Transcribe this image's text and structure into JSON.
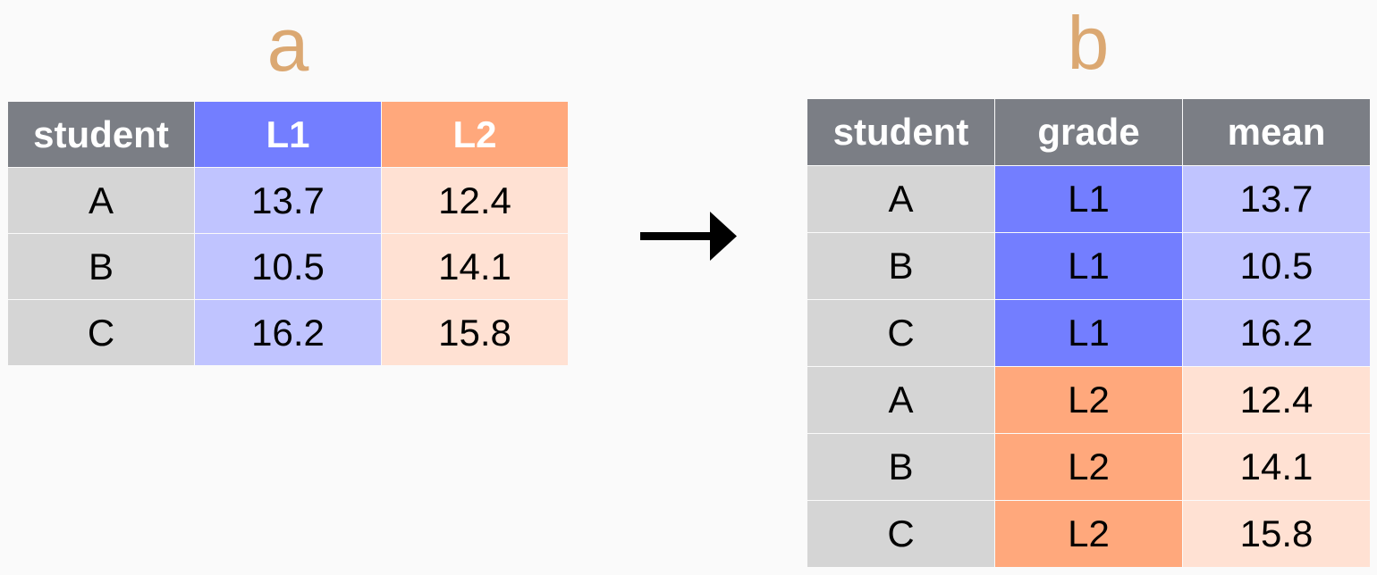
{
  "panel_a": {
    "label": "a",
    "headers": [
      "student",
      "L1",
      "L2"
    ],
    "rows": [
      {
        "student": "A",
        "L1": "13.7",
        "L2": "12.4"
      },
      {
        "student": "B",
        "L1": "10.5",
        "L2": "14.1"
      },
      {
        "student": "C",
        "L1": "16.2",
        "L2": "15.8"
      }
    ]
  },
  "panel_b": {
    "label": "b",
    "headers": [
      "student",
      "grade",
      "mean"
    ],
    "rows": [
      {
        "student": "A",
        "grade": "L1",
        "mean": "13.7"
      },
      {
        "student": "B",
        "grade": "L1",
        "mean": "10.5"
      },
      {
        "student": "C",
        "grade": "L1",
        "mean": "16.2"
      },
      {
        "student": "A",
        "grade": "L2",
        "mean": "12.4"
      },
      {
        "student": "B",
        "grade": "L2",
        "mean": "14.1"
      },
      {
        "student": "C",
        "grade": "L2",
        "mean": "15.8"
      }
    ]
  },
  "colors": {
    "background": "#fafafa",
    "label": "#dba872",
    "header_gray": "#7b7e85",
    "student_cell": "#d5d5d5",
    "l1_strong": "#737eff",
    "l1_light": "#c0c4ff",
    "l2_strong": "#ffa87c",
    "l2_light": "#ffe1d3"
  },
  "arrow": {
    "icon": "right-arrow-icon"
  }
}
